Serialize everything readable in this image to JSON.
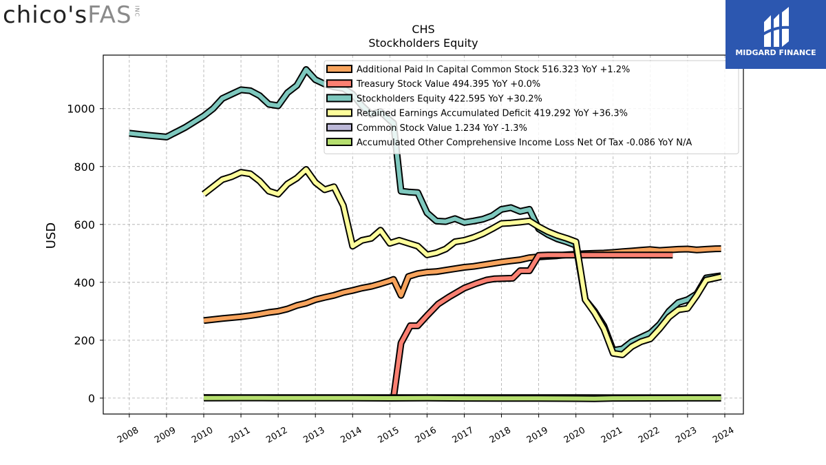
{
  "header": {
    "left_logo": {
      "part1": "chico's",
      "part2": "FAS",
      "part3": "INC"
    },
    "right_logo": {
      "name": "MIDGARD FINANCE",
      "bg": "#2c57b0"
    }
  },
  "chart_data": {
    "type": "line",
    "title": "CHS",
    "subtitle": "Stockholders  Equity",
    "ylabel": "USD",
    "xlabel": "",
    "xlim": [
      2007.3,
      2024.5
    ],
    "ylim": [
      -55,
      1185
    ],
    "yticks": [
      0,
      200,
      400,
      600,
      800,
      1000
    ],
    "xticks": [
      2008,
      2009,
      2010,
      2011,
      2012,
      2013,
      2014,
      2015,
      2016,
      2017,
      2018,
      2019,
      2020,
      2021,
      2022,
      2023,
      2024
    ],
    "grid": true,
    "legend_position": "top-right",
    "series": [
      {
        "name": "Additional Paid In Capital Common Stock",
        "legend": "Additional Paid In Capital Common Stock  516.323 YoY +1.2%",
        "color": "#f7a35c",
        "points": [
          [
            2010.0,
            268
          ],
          [
            2010.5,
            275
          ],
          [
            2011.0,
            281
          ],
          [
            2011.25,
            285
          ],
          [
            2011.5,
            290
          ],
          [
            2011.75,
            296
          ],
          [
            2012.0,
            300
          ],
          [
            2012.25,
            308
          ],
          [
            2012.5,
            320
          ],
          [
            2012.75,
            328
          ],
          [
            2013.0,
            340
          ],
          [
            2013.25,
            348
          ],
          [
            2013.5,
            355
          ],
          [
            2013.75,
            365
          ],
          [
            2014.0,
            372
          ],
          [
            2014.25,
            380
          ],
          [
            2014.5,
            386
          ],
          [
            2014.75,
            395
          ],
          [
            2015.0,
            405
          ],
          [
            2015.1,
            410
          ],
          [
            2015.3,
            355
          ],
          [
            2015.5,
            420
          ],
          [
            2015.75,
            430
          ],
          [
            2016.0,
            435
          ],
          [
            2016.25,
            437
          ],
          [
            2016.5,
            442
          ],
          [
            2016.75,
            447
          ],
          [
            2017.0,
            452
          ],
          [
            2017.25,
            455
          ],
          [
            2017.5,
            460
          ],
          [
            2017.75,
            465
          ],
          [
            2018.0,
            470
          ],
          [
            2018.25,
            474
          ],
          [
            2018.5,
            478
          ],
          [
            2018.75,
            485
          ],
          [
            2019.0,
            488
          ],
          [
            2019.25,
            490
          ],
          [
            2019.5,
            492
          ],
          [
            2019.75,
            495
          ],
          [
            2020.0,
            497
          ],
          [
            2020.25,
            499
          ],
          [
            2020.5,
            500
          ],
          [
            2020.75,
            501
          ],
          [
            2021.0,
            503
          ],
          [
            2021.25,
            506
          ],
          [
            2021.5,
            508
          ],
          [
            2021.75,
            511
          ],
          [
            2022.0,
            513
          ],
          [
            2022.25,
            510
          ],
          [
            2022.5,
            512
          ],
          [
            2022.75,
            514
          ],
          [
            2023.0,
            515
          ],
          [
            2023.25,
            512
          ],
          [
            2023.5,
            514
          ],
          [
            2023.75,
            516
          ],
          [
            2023.9,
            516.323
          ]
        ]
      },
      {
        "name": "Treasury Stock Value",
        "legend": "Treasury Stock Value  494.395 YoY +0.0%",
        "color": "#fa8072",
        "points": [
          [
            2015.1,
            0
          ],
          [
            2015.3,
            190
          ],
          [
            2015.55,
            250
          ],
          [
            2015.75,
            250
          ],
          [
            2016.0,
            285
          ],
          [
            2016.3,
            325
          ],
          [
            2016.6,
            350
          ],
          [
            2016.8,
            365
          ],
          [
            2017.0,
            380
          ],
          [
            2017.3,
            395
          ],
          [
            2017.6,
            408
          ],
          [
            2017.8,
            412
          ],
          [
            2018.0,
            413
          ],
          [
            2018.3,
            414
          ],
          [
            2018.5,
            440
          ],
          [
            2018.75,
            440
          ],
          [
            2019.0,
            493
          ],
          [
            2019.25,
            494
          ],
          [
            2019.5,
            494
          ],
          [
            2019.75,
            494
          ],
          [
            2020.0,
            494
          ],
          [
            2020.5,
            494
          ],
          [
            2021.0,
            494
          ],
          [
            2021.5,
            494
          ],
          [
            2022.0,
            494.395
          ],
          [
            2022.6,
            494.395
          ]
        ]
      },
      {
        "name": "Stockholders Equity",
        "legend": "Stockholders Equity  422.595 YoY +30.2%",
        "color": "#7ec8be",
        "points": [
          [
            2008.0,
            915
          ],
          [
            2008.5,
            908
          ],
          [
            2009.0,
            902
          ],
          [
            2009.5,
            935
          ],
          [
            2010.0,
            975
          ],
          [
            2010.25,
            1000
          ],
          [
            2010.5,
            1035
          ],
          [
            2010.75,
            1050
          ],
          [
            2011.0,
            1065
          ],
          [
            2011.25,
            1062
          ],
          [
            2011.5,
            1045
          ],
          [
            2011.75,
            1015
          ],
          [
            2012.0,
            1010
          ],
          [
            2012.25,
            1055
          ],
          [
            2012.5,
            1080
          ],
          [
            2012.75,
            1135
          ],
          [
            2013.0,
            1100
          ],
          [
            2013.25,
            1085
          ],
          [
            2013.5,
            1075
          ],
          [
            2013.75,
            1070
          ],
          [
            2014.0,
            1050
          ],
          [
            2014.25,
            1010
          ],
          [
            2014.5,
            980
          ],
          [
            2014.75,
            990
          ],
          [
            2015.0,
            960
          ],
          [
            2015.1,
            950
          ],
          [
            2015.3,
            715
          ],
          [
            2015.5,
            712
          ],
          [
            2015.75,
            710
          ],
          [
            2016.0,
            640
          ],
          [
            2016.25,
            612
          ],
          [
            2016.5,
            610
          ],
          [
            2016.75,
            620
          ],
          [
            2017.0,
            607
          ],
          [
            2017.25,
            612
          ],
          [
            2017.5,
            618
          ],
          [
            2017.75,
            630
          ],
          [
            2018.0,
            652
          ],
          [
            2018.25,
            658
          ],
          [
            2018.5,
            645
          ],
          [
            2018.75,
            652
          ],
          [
            2019.0,
            585
          ],
          [
            2019.25,
            565
          ],
          [
            2019.5,
            550
          ],
          [
            2019.75,
            540
          ],
          [
            2020.0,
            528
          ],
          [
            2020.25,
            340
          ],
          [
            2020.5,
            300
          ],
          [
            2020.75,
            250
          ],
          [
            2021.0,
            165
          ],
          [
            2021.25,
            170
          ],
          [
            2021.5,
            195
          ],
          [
            2021.75,
            210
          ],
          [
            2022.0,
            225
          ],
          [
            2022.25,
            255
          ],
          [
            2022.5,
            300
          ],
          [
            2022.75,
            330
          ],
          [
            2023.0,
            340
          ],
          [
            2023.25,
            360
          ],
          [
            2023.5,
            415
          ],
          [
            2023.75,
            420
          ],
          [
            2023.9,
            422.595
          ]
        ]
      },
      {
        "name": "Retained Earnings Accumulated Deficit",
        "legend": "Retained Earnings Accumulated Deficit  419.292 YoY +36.3%",
        "color": "#fdfd9b",
        "points": [
          [
            2010.0,
            705
          ],
          [
            2010.25,
            730
          ],
          [
            2010.5,
            755
          ],
          [
            2010.75,
            765
          ],
          [
            2011.0,
            780
          ],
          [
            2011.25,
            775
          ],
          [
            2011.5,
            750
          ],
          [
            2011.75,
            715
          ],
          [
            2012.0,
            705
          ],
          [
            2012.25,
            740
          ],
          [
            2012.5,
            760
          ],
          [
            2012.75,
            790
          ],
          [
            2013.0,
            745
          ],
          [
            2013.25,
            720
          ],
          [
            2013.5,
            730
          ],
          [
            2013.75,
            665
          ],
          [
            2014.0,
            525
          ],
          [
            2014.25,
            545
          ],
          [
            2014.5,
            552
          ],
          [
            2014.75,
            580
          ],
          [
            2015.0,
            535
          ],
          [
            2015.25,
            545
          ],
          [
            2015.5,
            535
          ],
          [
            2015.75,
            525
          ],
          [
            2016.0,
            495
          ],
          [
            2016.25,
            502
          ],
          [
            2016.5,
            515
          ],
          [
            2016.75,
            540
          ],
          [
            2017.0,
            545
          ],
          [
            2017.25,
            555
          ],
          [
            2017.5,
            568
          ],
          [
            2017.75,
            585
          ],
          [
            2018.0,
            603
          ],
          [
            2018.25,
            605
          ],
          [
            2018.5,
            608
          ],
          [
            2018.75,
            612
          ],
          [
            2019.0,
            592
          ],
          [
            2019.25,
            575
          ],
          [
            2019.5,
            562
          ],
          [
            2019.75,
            552
          ],
          [
            2020.0,
            540
          ],
          [
            2020.25,
            340
          ],
          [
            2020.5,
            295
          ],
          [
            2020.75,
            240
          ],
          [
            2021.0,
            155
          ],
          [
            2021.25,
            150
          ],
          [
            2021.5,
            178
          ],
          [
            2021.75,
            195
          ],
          [
            2022.0,
            205
          ],
          [
            2022.25,
            240
          ],
          [
            2022.5,
            280
          ],
          [
            2022.75,
            305
          ],
          [
            2023.0,
            310
          ],
          [
            2023.25,
            355
          ],
          [
            2023.5,
            408
          ],
          [
            2023.75,
            415
          ],
          [
            2023.9,
            419.292
          ]
        ]
      },
      {
        "name": "Common Stock Value",
        "legend": "Common Stock Value  1.234 YoY -1.3%",
        "color": "#bcb8d8",
        "points": [
          [
            2010.0,
            1.8
          ],
          [
            2011.0,
            1.75
          ],
          [
            2012.0,
            1.7
          ],
          [
            2013.0,
            1.65
          ],
          [
            2014.0,
            1.6
          ],
          [
            2015.0,
            1.55
          ],
          [
            2016.0,
            1.5
          ],
          [
            2017.0,
            1.45
          ],
          [
            2018.0,
            1.4
          ],
          [
            2019.0,
            1.35
          ],
          [
            2020.0,
            1.3
          ],
          [
            2021.0,
            1.28
          ],
          [
            2022.0,
            1.26
          ],
          [
            2023.0,
            1.25
          ],
          [
            2023.9,
            1.234
          ]
        ]
      },
      {
        "name": "Accumulated Other Comprehensive Income Loss Net Of Tax",
        "legend": "Accumulated Other Comprehensive Income Loss Net Of Tax  -0.086 YoY N/A",
        "color": "#b5de6e",
        "points": [
          [
            2010.0,
            0.3
          ],
          [
            2011.0,
            0.6
          ],
          [
            2012.0,
            0.4
          ],
          [
            2013.0,
            0.2
          ],
          [
            2014.0,
            0.1
          ],
          [
            2015.0,
            -0.3
          ],
          [
            2016.0,
            0.1
          ],
          [
            2017.0,
            -0.5
          ],
          [
            2018.0,
            -0.8
          ],
          [
            2019.0,
            -1.0
          ],
          [
            2020.0,
            -1.5
          ],
          [
            2020.5,
            -2.0
          ],
          [
            2021.0,
            -0.5
          ],
          [
            2022.0,
            -0.2
          ],
          [
            2023.0,
            -0.1
          ],
          [
            2023.9,
            -0.086
          ]
        ]
      }
    ]
  }
}
